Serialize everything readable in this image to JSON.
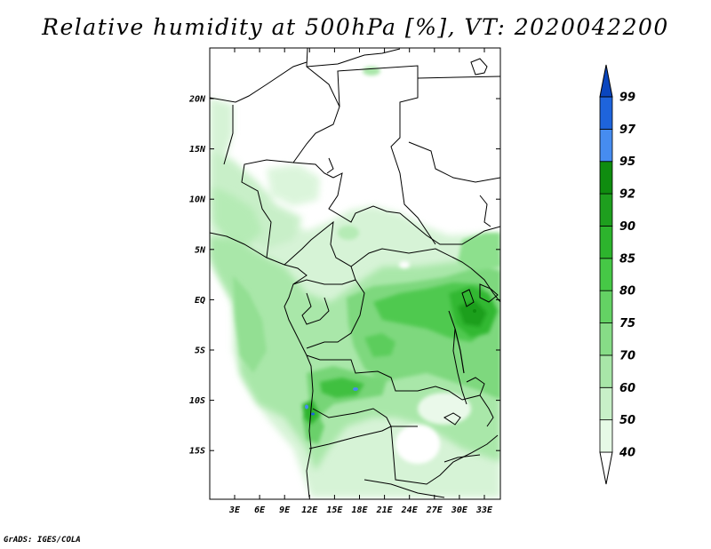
{
  "title": "Relative humidity at 500hPa [%], VT: 2020042200",
  "credit": "GrADS: IGES/COLA",
  "map": {
    "lon_labels": [
      "3E",
      "6E",
      "9E",
      "12E",
      "15E",
      "18E",
      "21E",
      "24E",
      "27E",
      "30E",
      "33E"
    ],
    "lat_labels": [
      "20N",
      "15N",
      "10N",
      "5N",
      "EQ",
      "5S",
      "10S",
      "15S"
    ]
  },
  "colorbar": {
    "levels": [
      "40",
      "50",
      "60",
      "70",
      "75",
      "80",
      "85",
      "90",
      "92",
      "95",
      "97",
      "99"
    ],
    "colors": [
      "#ffffff",
      "#e6fae6",
      "#c8f0c8",
      "#a8e6a8",
      "#87dc87",
      "#64d264",
      "#46c846",
      "#2db42d",
      "#1e9f1e",
      "#0f8c0f",
      "#468cf0",
      "#1e64dc",
      "#0a46be"
    ]
  },
  "colors": {
    "border": "#000000",
    "frame": "#000000"
  }
}
